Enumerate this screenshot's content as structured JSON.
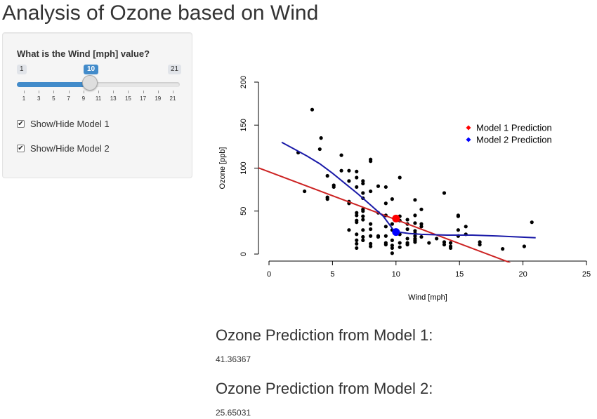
{
  "page": {
    "title": "Analysis of Ozone based on Wind"
  },
  "sidebar": {
    "slider": {
      "label": "What is the Wind [mph] value?",
      "min_label": "1",
      "max_label": "21",
      "value_label": "10",
      "value": 10,
      "min": 1,
      "max": 21,
      "grid_labels": [
        "1",
        "3",
        "5",
        "7",
        "9",
        "11",
        "13",
        "15",
        "17",
        "19",
        "21"
      ]
    },
    "checkbox_model1": {
      "label": "Show/Hide Model 1",
      "checked": true
    },
    "checkbox_model2": {
      "label": "Show/Hide Model 2",
      "checked": true
    }
  },
  "main": {
    "pred1_heading": "Ozone Prediction from Model 1:",
    "pred1_value": "41.36367",
    "pred2_heading": "Ozone Prediction from Model 2:",
    "pred2_value": "25.65031"
  },
  "colors": {
    "accent": "#428bca",
    "model1": "#cc2222",
    "model2": "#1a1aa8",
    "pred1_point": "#ff0000",
    "pred2_point": "#0000ff"
  },
  "chart_data": {
    "type": "scatter",
    "xlabel": "Wind [mph]",
    "ylabel": "Ozone [ppb]",
    "xlim": [
      0,
      25
    ],
    "ylim": [
      0,
      200
    ],
    "xticks": [
      "0",
      "5",
      "10",
      "15",
      "20",
      "25"
    ],
    "yticks": [
      "0",
      "50",
      "100",
      "150",
      "200"
    ],
    "legend": {
      "position": "top-right",
      "entries": [
        "Model 1 Prediction",
        "Model 2 Prediction"
      ]
    },
    "points": [
      [
        2.3,
        118
      ],
      [
        2.8,
        73
      ],
      [
        3.4,
        168
      ],
      [
        4.0,
        122
      ],
      [
        4.1,
        135
      ],
      [
        4.6,
        91
      ],
      [
        4.6,
        66
      ],
      [
        4.6,
        64
      ],
      [
        5.1,
        80
      ],
      [
        5.1,
        78
      ],
      [
        5.7,
        115
      ],
      [
        5.7,
        97
      ],
      [
        6.3,
        97
      ],
      [
        6.3,
        85
      ],
      [
        6.3,
        59
      ],
      [
        6.3,
        61
      ],
      [
        6.3,
        28
      ],
      [
        6.9,
        96
      ],
      [
        6.9,
        89
      ],
      [
        6.9,
        78
      ],
      [
        6.9,
        48
      ],
      [
        6.9,
        45
      ],
      [
        6.9,
        39
      ],
      [
        6.9,
        37
      ],
      [
        6.9,
        23
      ],
      [
        6.9,
        16
      ],
      [
        6.9,
        12
      ],
      [
        6.9,
        7
      ],
      [
        7.4,
        85
      ],
      [
        7.4,
        82
      ],
      [
        7.4,
        71
      ],
      [
        7.4,
        65
      ],
      [
        7.4,
        52
      ],
      [
        7.4,
        50
      ],
      [
        7.4,
        44
      ],
      [
        7.4,
        40
      ],
      [
        7.4,
        28
      ],
      [
        7.4,
        20
      ],
      [
        7.4,
        16
      ],
      [
        8.0,
        110
      ],
      [
        8.0,
        108
      ],
      [
        8.0,
        73
      ],
      [
        8.0,
        35
      ],
      [
        8.0,
        29
      ],
      [
        8.0,
        21
      ],
      [
        8.0,
        12
      ],
      [
        8.0,
        9
      ],
      [
        8.6,
        79
      ],
      [
        8.6,
        48
      ],
      [
        8.6,
        21
      ],
      [
        8.6,
        20
      ],
      [
        9.2,
        78
      ],
      [
        9.2,
        59
      ],
      [
        9.2,
        45
      ],
      [
        9.2,
        32
      ],
      [
        9.2,
        21
      ],
      [
        9.2,
        13
      ],
      [
        9.2,
        11
      ],
      [
        9.7,
        64
      ],
      [
        9.7,
        35
      ],
      [
        9.7,
        28
      ],
      [
        9.7,
        16
      ],
      [
        9.7,
        10
      ],
      [
        9.7,
        7
      ],
      [
        9.7,
        1
      ],
      [
        10.3,
        89
      ],
      [
        10.3,
        44
      ],
      [
        10.3,
        39
      ],
      [
        10.3,
        23
      ],
      [
        10.3,
        13
      ],
      [
        10.3,
        8
      ],
      [
        10.9,
        40
      ],
      [
        10.9,
        35
      ],
      [
        10.9,
        29
      ],
      [
        10.9,
        18
      ],
      [
        10.9,
        13
      ],
      [
        10.9,
        11
      ],
      [
        11.5,
        63
      ],
      [
        11.5,
        45
      ],
      [
        11.5,
        36
      ],
      [
        11.5,
        27
      ],
      [
        11.5,
        24
      ],
      [
        11.5,
        21
      ],
      [
        11.5,
        18
      ],
      [
        11.5,
        16
      ],
      [
        11.5,
        14
      ],
      [
        12.0,
        52
      ],
      [
        12.0,
        35
      ],
      [
        12.0,
        32
      ],
      [
        12.0,
        20
      ],
      [
        12.6,
        13
      ],
      [
        13.2,
        18
      ],
      [
        13.8,
        71
      ],
      [
        13.8,
        14
      ],
      [
        13.8,
        11
      ],
      [
        14.3,
        13
      ],
      [
        14.3,
        9
      ],
      [
        14.3,
        7
      ],
      [
        14.9,
        45
      ],
      [
        14.9,
        44
      ],
      [
        14.9,
        28
      ],
      [
        14.9,
        21
      ],
      [
        15.5,
        32
      ],
      [
        15.5,
        23
      ],
      [
        16.6,
        14
      ],
      [
        16.6,
        11
      ],
      [
        18.4,
        6
      ],
      [
        20.1,
        9
      ],
      [
        20.7,
        37
      ]
    ],
    "series": [
      {
        "name": "Model 1 Prediction",
        "type": "line",
        "points": [
          [
            -1.5,
            104
          ],
          [
            19,
            -10
          ]
        ]
      },
      {
        "name": "Model 2 Prediction",
        "type": "line",
        "points": [
          [
            1,
            130
          ],
          [
            2,
            122
          ],
          [
            3,
            114
          ],
          [
            4,
            105
          ],
          [
            5,
            94
          ],
          [
            6,
            82
          ],
          [
            7,
            70
          ],
          [
            8,
            57
          ],
          [
            9,
            44
          ],
          [
            9.8,
            28
          ],
          [
            10,
            26
          ],
          [
            11,
            24
          ],
          [
            12,
            23
          ],
          [
            14,
            22
          ],
          [
            16,
            22
          ],
          [
            18,
            21
          ],
          [
            21,
            19
          ]
        ]
      }
    ],
    "highlight_points": [
      {
        "series": "Model 1 Prediction",
        "x": 10,
        "y": 41.36367
      },
      {
        "series": "Model 2 Prediction",
        "x": 10,
        "y": 25.65031
      }
    ]
  }
}
